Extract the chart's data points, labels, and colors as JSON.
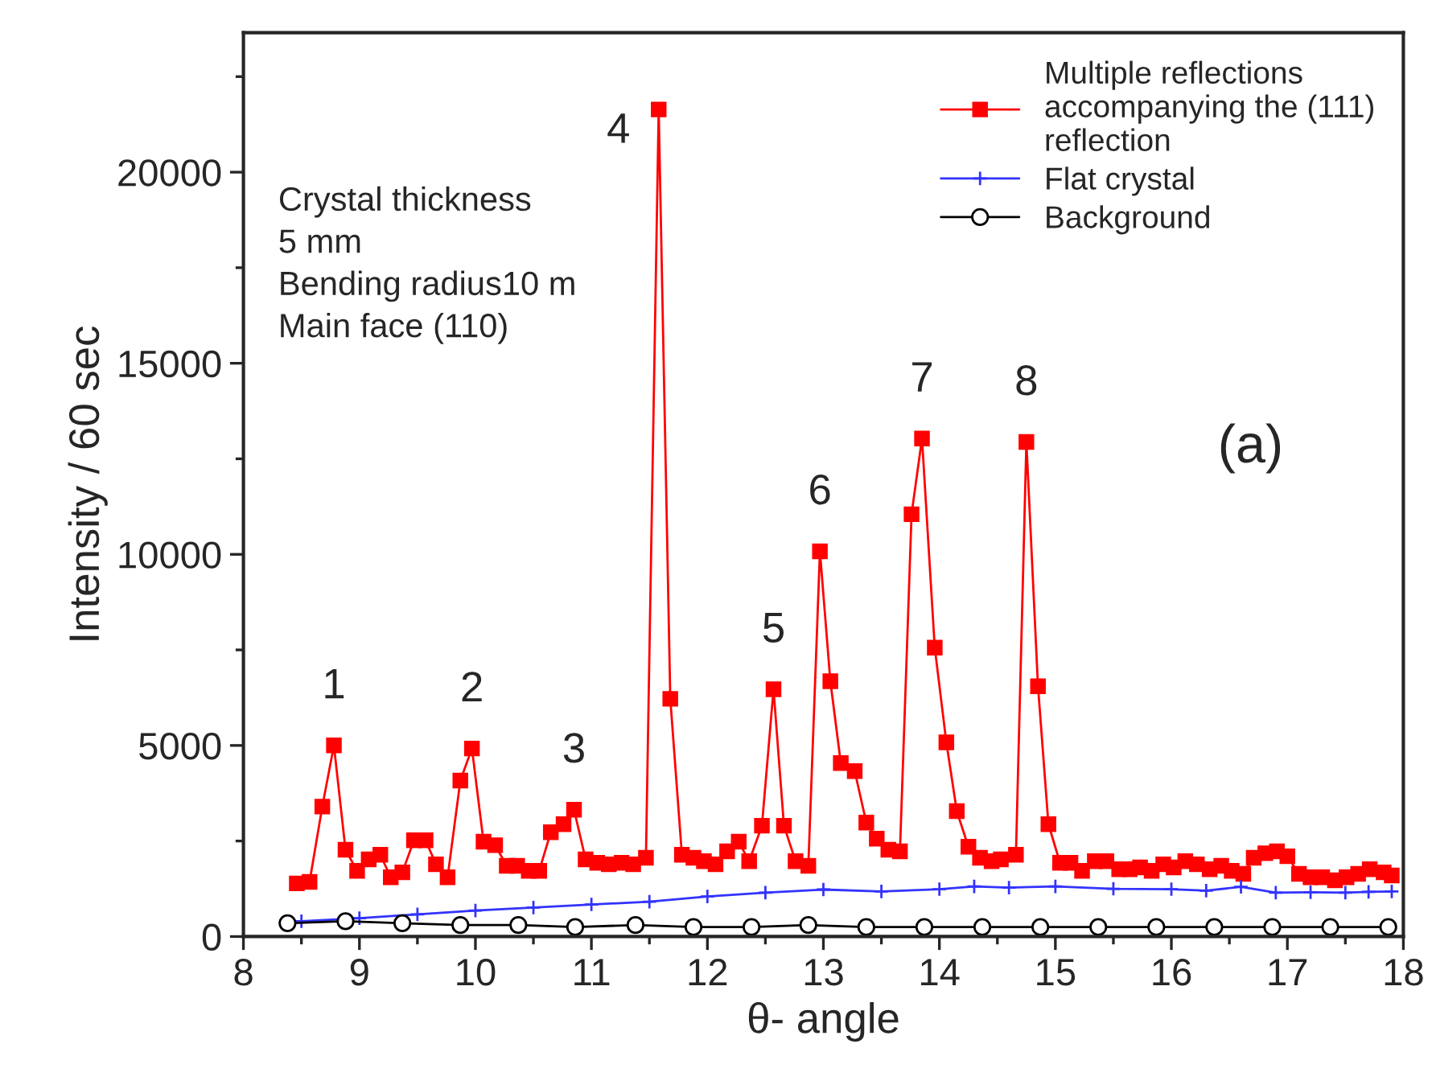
{
  "chart_data": {
    "type": "line",
    "xlabel": "θ- angle",
    "ylabel": "Intensity / 60 sec",
    "xlim": [
      8,
      18
    ],
    "ylim": [
      0,
      23650
    ],
    "xticks": [
      8,
      9,
      10,
      11,
      12,
      13,
      14,
      15,
      16,
      17,
      18
    ],
    "yticks": [
      0,
      5000,
      10000,
      15000,
      20000
    ],
    "grid": false,
    "legend": "top right",
    "series": [
      {
        "name": "Multiple reflections\naccompanying the (111)\nreflection",
        "color": "#ff0000",
        "marker": "square",
        "line_style": "solid",
        "x": [
          8.46,
          8.57,
          8.68,
          8.78,
          8.88,
          8.98,
          9.08,
          9.18,
          9.27,
          9.37,
          9.47,
          9.57,
          9.66,
          9.76,
          9.87,
          9.97,
          10.07,
          10.17,
          10.27,
          10.36,
          10.46,
          10.55,
          10.65,
          10.76,
          10.85,
          10.95,
          11.05,
          11.15,
          11.26,
          11.36,
          11.47,
          11.58,
          11.68,
          11.78,
          11.88,
          11.97,
          12.07,
          12.17,
          12.27,
          12.36,
          12.47,
          12.57,
          12.66,
          12.76,
          12.87,
          12.97,
          13.06,
          13.15,
          13.27,
          13.37,
          13.46,
          13.56,
          13.66,
          13.76,
          13.85,
          13.96,
          14.06,
          14.15,
          14.25,
          14.35,
          14.45,
          14.53,
          14.66,
          14.75,
          14.85,
          14.94,
          15.04,
          15.13,
          15.23,
          15.34,
          15.44,
          15.55,
          15.64,
          15.73,
          15.83,
          15.93,
          16.02,
          16.12,
          16.22,
          16.33,
          16.43,
          16.52,
          16.62,
          16.71,
          16.81,
          16.91,
          17.0,
          17.1,
          17.2,
          17.3,
          17.41,
          17.51,
          17.61,
          17.71,
          17.83,
          17.9
        ],
        "values": [
          1390,
          1430,
          3400,
          5000,
          2270,
          1720,
          2020,
          2140,
          1550,
          1680,
          2520,
          2520,
          1890,
          1550,
          4080,
          4920,
          2480,
          2390,
          1850,
          1850,
          1720,
          1720,
          2730,
          2940,
          3320,
          2020,
          1930,
          1890,
          1930,
          1890,
          2060,
          21640,
          6220,
          2140,
          2060,
          1970,
          1890,
          2230,
          2480,
          1970,
          2900,
          6470,
          2900,
          1970,
          1850,
          10080,
          6680,
          4540,
          4330,
          2980,
          2560,
          2270,
          2230,
          11050,
          13030,
          7560,
          5080,
          3280,
          2350,
          2060,
          1970,
          2020,
          2140,
          12940,
          6550,
          2940,
          1930,
          1930,
          1720,
          1970,
          1970,
          1760,
          1760,
          1810,
          1720,
          1890,
          1810,
          1970,
          1890,
          1760,
          1850,
          1720,
          1640,
          2060,
          2180,
          2230,
          2100,
          1640,
          1550,
          1550,
          1470,
          1550,
          1640,
          1760,
          1680,
          1600
        ]
      },
      {
        "name": "Flat crystal",
        "color": "#3333ff",
        "marker": "cross",
        "line_style": "solid",
        "x": [
          8.5,
          9.0,
          9.5,
          10.0,
          10.5,
          11.0,
          11.5,
          12.0,
          12.5,
          13.0,
          13.5,
          14.0,
          14.3,
          14.6,
          15.0,
          15.5,
          16.0,
          16.3,
          16.6,
          16.9,
          17.2,
          17.5,
          17.7,
          17.9
        ],
        "values": [
          400,
          480,
          580,
          680,
          760,
          840,
          910,
          1050,
          1150,
          1230,
          1180,
          1240,
          1310,
          1280,
          1310,
          1250,
          1240,
          1200,
          1300,
          1150,
          1160,
          1150,
          1170,
          1180
        ]
      },
      {
        "name": "Background",
        "color": "#000000",
        "marker": "circle",
        "line_style": "solid",
        "x": [
          8.38,
          8.88,
          9.37,
          9.87,
          10.37,
          10.86,
          11.38,
          11.88,
          12.38,
          12.87,
          13.37,
          13.87,
          14.37,
          14.87,
          15.37,
          15.87,
          16.37,
          16.87,
          17.37,
          17.87
        ],
        "values": [
          350,
          400,
          350,
          300,
          300,
          250,
          300,
          250,
          250,
          300,
          250,
          250,
          250,
          250,
          250,
          250,
          250,
          250,
          250,
          250
        ]
      }
    ],
    "annotations": [
      "Crystal thickness\n5 mm\nBending radius10 m\nMain face (110)",
      "(a)",
      {
        "text": "1",
        "x": 8.78,
        "y": 5000
      },
      {
        "text": "2",
        "x": 9.97,
        "y": 4920
      },
      {
        "text": "3",
        "x": 10.85,
        "y": 3320
      },
      {
        "text": "4",
        "x": 11.58,
        "y": 21640
      },
      {
        "text": "5",
        "x": 12.57,
        "y": 6470
      },
      {
        "text": "6",
        "x": 12.97,
        "y": 10080
      },
      {
        "text": "7",
        "x": 13.85,
        "y": 13030
      },
      {
        "text": "8",
        "x": 14.75,
        "y": 12940
      }
    ]
  }
}
